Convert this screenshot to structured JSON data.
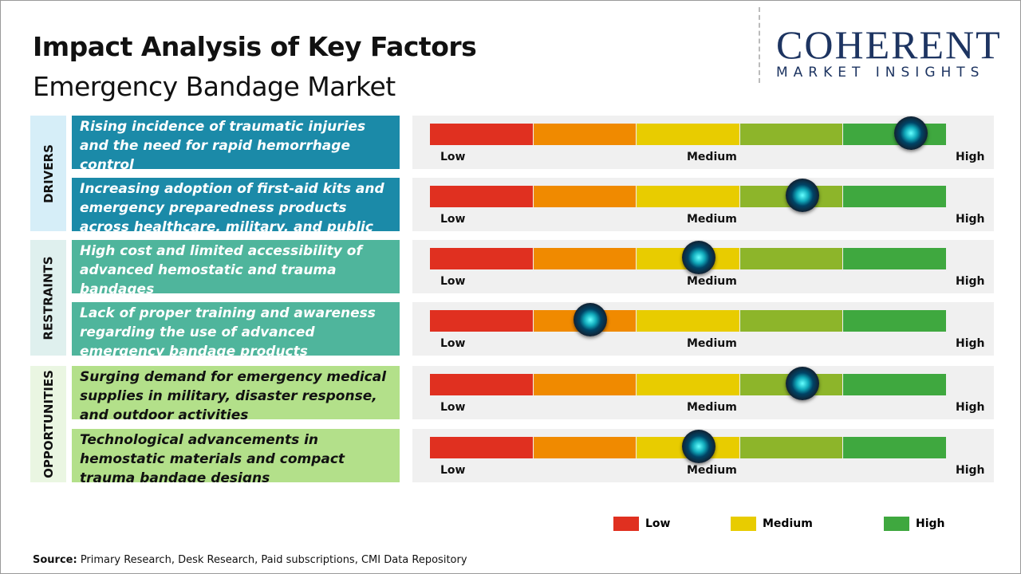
{
  "header": {
    "title": "Impact Analysis of Key Factors",
    "subtitle": "Emergency Bandage Market"
  },
  "logo": {
    "main": "COHERENT",
    "sub": "MARKET INSIGHTS"
  },
  "categories": [
    {
      "label": "DRIVERS",
      "color": "#d6eef8"
    },
    {
      "label": "RESTRAINTS",
      "color": "#dff0ee"
    },
    {
      "label": "OPPORTUNITIES",
      "color": "#eaf6e2"
    }
  ],
  "chart_data": {
    "type": "gauge-table",
    "scale_labels": [
      "Low",
      "Medium",
      "High"
    ],
    "segment_colors": [
      "#e03020",
      "#f08a00",
      "#e8cc00",
      "#8db52a",
      "#3fa83f"
    ],
    "factors": [
      {
        "category": "DRIVERS",
        "text": "Rising incidence of traumatic injuries and the need for rapid hemorrhage control",
        "impact": 0.93,
        "color": "#1b8aa8",
        "text_color": "#ffffff"
      },
      {
        "category": "DRIVERS",
        "text": "Increasing adoption of first-aid kits and emergency preparedness products across healthcare, military, and public settings",
        "impact": 0.72,
        "color": "#1b8aa8",
        "text_color": "#ffffff"
      },
      {
        "category": "RESTRAINTS",
        "text": "High cost and limited accessibility of advanced hemostatic and trauma bandages",
        "impact": 0.52,
        "color": "#4fb59c",
        "text_color": "#ffffff"
      },
      {
        "category": "RESTRAINTS",
        "text": "Lack of proper training and awareness regarding the use of advanced emergency bandage products",
        "impact": 0.31,
        "color": "#4fb59c",
        "text_color": "#ffffff"
      },
      {
        "category": "OPPORTUNITIES",
        "text": "Surging demand for emergency medical supplies in military, disaster response, and outdoor activities",
        "impact": 0.72,
        "color": "#b3e08a",
        "text_color": "#111111"
      },
      {
        "category": "OPPORTUNITIES",
        "text": "Technological advancements in hemostatic materials and compact trauma bandage designs",
        "impact": 0.52,
        "color": "#b3e08a",
        "text_color": "#111111"
      }
    ],
    "legend": [
      {
        "label": "Low",
        "color": "#e03020"
      },
      {
        "label": "Medium",
        "color": "#e8cc00"
      },
      {
        "label": "High",
        "color": "#3fa83f"
      }
    ]
  },
  "source": {
    "label": "Source:",
    "text": " Primary Research, Desk Research, Paid subscriptions, CMI Data Repository"
  }
}
